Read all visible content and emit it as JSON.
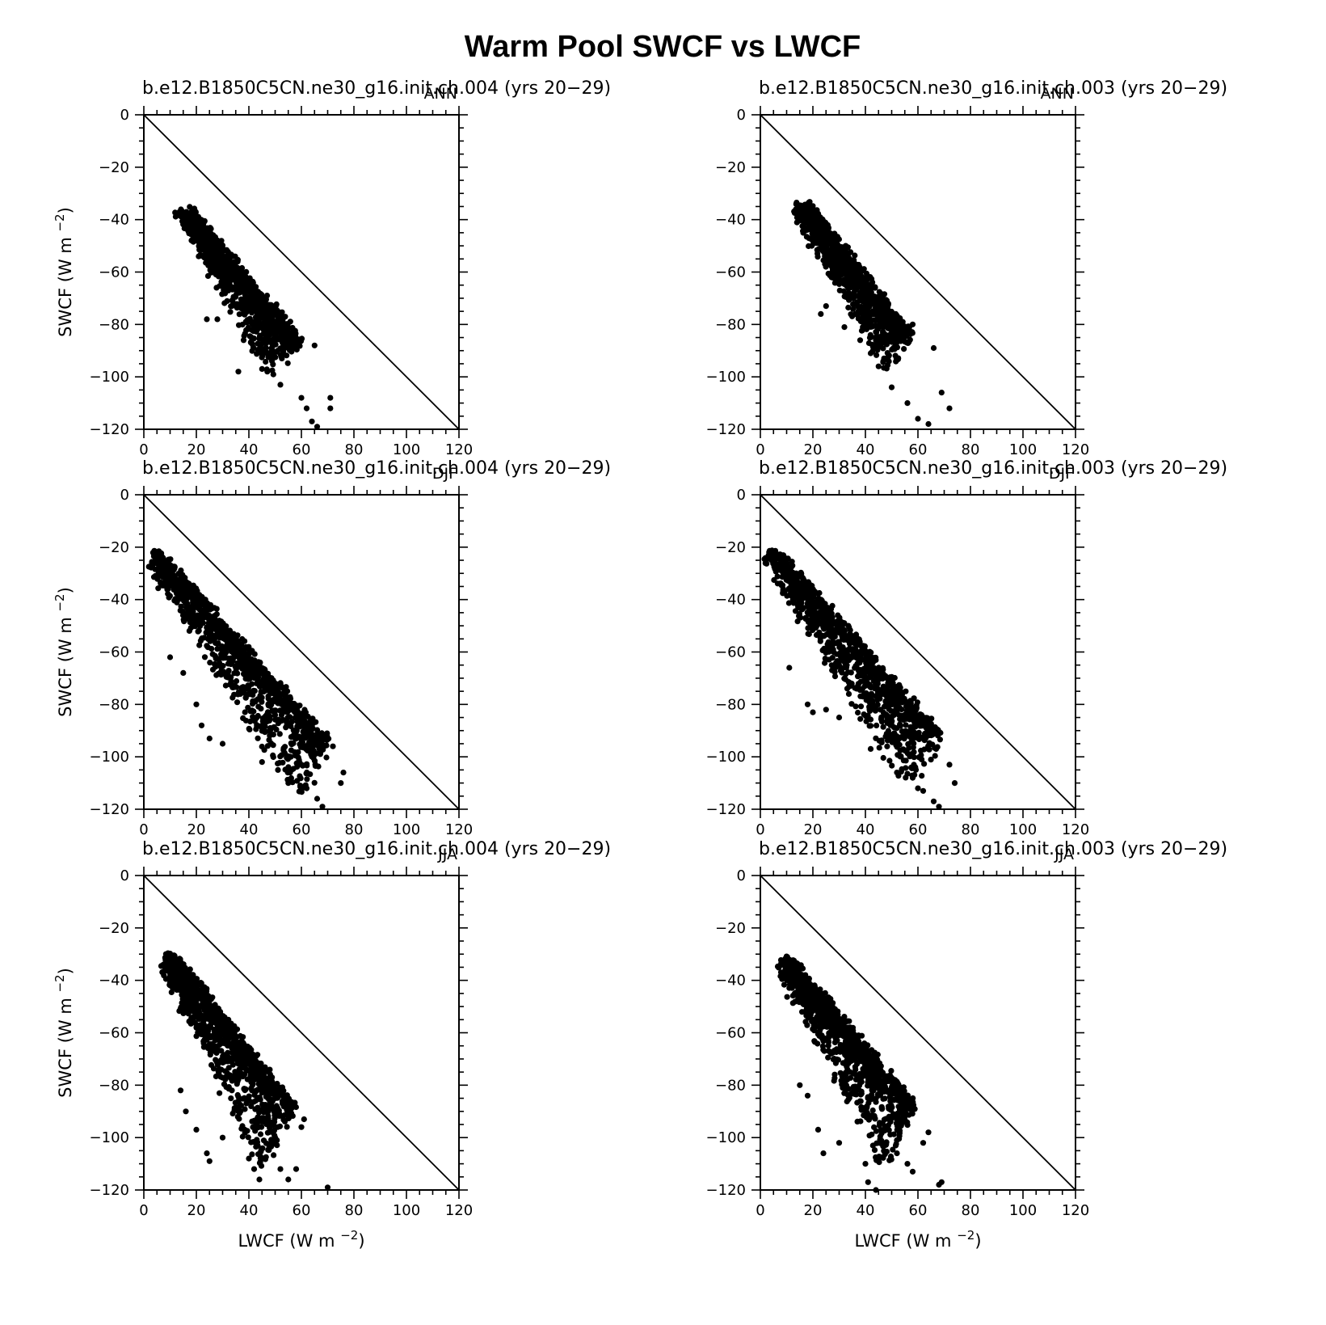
{
  "figure": {
    "title": "Warm Pool SWCF vs LWCF",
    "xlabel": "LWCF (W m",
    "ylabel": "SWCF (W m",
    "unit_exponent": "−2",
    "units_close": ")"
  },
  "chart_data": [
    {
      "type": "scatter",
      "title": "b.e12.B1850C5CN.ne30_g16.init.ch.004 (yrs 20−29)",
      "season": "ANN",
      "xlabel": "LWCF (W m−2)",
      "ylabel": "SWCF (W m−2)",
      "xlim": [
        0,
        120
      ],
      "ylim": [
        -120,
        0
      ],
      "xticks": [
        0,
        20,
        40,
        60,
        80,
        100,
        120
      ],
      "yticks": [
        0,
        -20,
        -40,
        -60,
        -80,
        -100,
        -120
      ],
      "reference_line": "y = -x",
      "series": [
        {
          "color": "#000000",
          "points": {
            "shape": "band",
            "x_start": 16,
            "y_start": -36,
            "x_end": 58,
            "y_end": -86,
            "width": 6,
            "scatter_x": 14,
            "scatter_y": -16,
            "outliers": [
              [
                24,
                -78
              ],
              [
                28,
                -78
              ],
              [
                38,
                -86
              ],
              [
                36,
                -98
              ],
              [
                45,
                -97
              ],
              [
                52,
                -103
              ],
              [
                60,
                -108
              ],
              [
                62,
                -112
              ],
              [
                64,
                -117
              ],
              [
                66,
                -119
              ],
              [
                71,
                -112
              ],
              [
                71,
                -108
              ],
              [
                65,
                -88
              ],
              [
                48,
                -86
              ]
            ]
          }
        }
      ]
    },
    {
      "type": "scatter",
      "title": "b.e12.B1850C5CN.ne30_g16.init.ch.003 (yrs 20−29)",
      "season": "ANN",
      "xlabel": "LWCF (W m−2)",
      "ylabel": "SWCF (W m−2)",
      "xlim": [
        0,
        120
      ],
      "ylim": [
        -120,
        0
      ],
      "xticks": [
        0,
        20,
        40,
        60,
        80,
        100,
        120
      ],
      "yticks": [
        0,
        -20,
        -40,
        -60,
        -80,
        -100,
        -120
      ],
      "reference_line": "y = -x",
      "series": [
        {
          "color": "#000000",
          "points": {
            "shape": "band",
            "x_start": 16,
            "y_start": -34,
            "x_end": 56,
            "y_end": -84,
            "width": 6,
            "scatter_x": 12,
            "scatter_y": -16,
            "outliers": [
              [
                23,
                -76
              ],
              [
                25,
                -73
              ],
              [
                32,
                -81
              ],
              [
                38,
                -86
              ],
              [
                42,
                -91
              ],
              [
                45,
                -96
              ],
              [
                50,
                -104
              ],
              [
                56,
                -110
              ],
              [
                60,
                -116
              ],
              [
                64,
                -118
              ],
              [
                72,
                -112
              ],
              [
                69,
                -106
              ],
              [
                66,
                -89
              ],
              [
                58,
                -80
              ]
            ]
          }
        }
      ]
    },
    {
      "type": "scatter",
      "title": "b.e12.B1850C5CN.ne30_g16.init.ch.004 (yrs 20−29)",
      "season": "DJF",
      "xlabel": "LWCF (W m−2)",
      "ylabel": "SWCF (W m−2)",
      "xlim": [
        0,
        120
      ],
      "ylim": [
        -120,
        0
      ],
      "xticks": [
        0,
        20,
        40,
        60,
        80,
        100,
        120
      ],
      "yticks": [
        0,
        -20,
        -40,
        -60,
        -80,
        -100,
        -120
      ],
      "reference_line": "y = -x",
      "series": [
        {
          "color": "#000000",
          "points": {
            "shape": "band",
            "x_start": 5,
            "y_start": -22,
            "x_end": 70,
            "y_end": -95,
            "width": 5,
            "scatter_x": 18,
            "scatter_y": -26,
            "outliers": [
              [
                10,
                -62
              ],
              [
                15,
                -68
              ],
              [
                20,
                -80
              ],
              [
                22,
                -88
              ],
              [
                25,
                -93
              ],
              [
                30,
                -95
              ],
              [
                45,
                -102
              ],
              [
                55,
                -110
              ],
              [
                62,
                -112
              ],
              [
                66,
                -116
              ],
              [
                68,
                -119
              ],
              [
                75,
                -110
              ],
              [
                76,
                -106
              ],
              [
                72,
                -96
              ]
            ]
          }
        }
      ]
    },
    {
      "type": "scatter",
      "title": "b.e12.B1850C5CN.ne30_g16.init.ch.003 (yrs 20−29)",
      "season": "DJF",
      "xlabel": "LWCF (W m−2)",
      "ylabel": "SWCF (W m−2)",
      "xlim": [
        0,
        120
      ],
      "ylim": [
        -120,
        0
      ],
      "xticks": [
        0,
        20,
        40,
        60,
        80,
        100,
        120
      ],
      "yticks": [
        0,
        -20,
        -40,
        -60,
        -80,
        -100,
        -120
      ],
      "reference_line": "y = -x",
      "series": [
        {
          "color": "#000000",
          "points": {
            "shape": "band",
            "x_start": 5,
            "y_start": -21,
            "x_end": 68,
            "y_end": -92,
            "width": 5,
            "scatter_x": 18,
            "scatter_y": -24,
            "outliers": [
              [
                11,
                -66
              ],
              [
                18,
                -80
              ],
              [
                20,
                -83
              ],
              [
                25,
                -82
              ],
              [
                30,
                -85
              ],
              [
                42,
                -97
              ],
              [
                52,
                -106
              ],
              [
                58,
                -108
              ],
              [
                60,
                -112
              ],
              [
                62,
                -113
              ],
              [
                66,
                -117
              ],
              [
                68,
                -119
              ],
              [
                74,
                -110
              ],
              [
                72,
                -103
              ]
            ]
          }
        }
      ]
    },
    {
      "type": "scatter",
      "title": "b.e12.B1850C5CN.ne30_g16.init.ch.004 (yrs 20−29)",
      "season": "JJA",
      "xlabel": "LWCF (W m−2)",
      "ylabel": "SWCF (W m−2)",
      "xlim": [
        0,
        120
      ],
      "ylim": [
        -120,
        0
      ],
      "xticks": [
        0,
        20,
        40,
        60,
        80,
        100,
        120
      ],
      "yticks": [
        0,
        -20,
        -40,
        -60,
        -80,
        -100,
        -120
      ],
      "reference_line": "y = -x",
      "series": [
        {
          "color": "#000000",
          "points": {
            "shape": "band",
            "x_start": 10,
            "y_start": -30,
            "x_end": 56,
            "y_end": -88,
            "width": 5,
            "scatter_x": 16,
            "scatter_y": -30,
            "outliers": [
              [
                14,
                -82
              ],
              [
                16,
                -90
              ],
              [
                20,
                -97
              ],
              [
                24,
                -106
              ],
              [
                25,
                -109
              ],
              [
                30,
                -100
              ],
              [
                40,
                -108
              ],
              [
                42,
                -112
              ],
              [
                44,
                -116
              ],
              [
                52,
                -112
              ],
              [
                55,
                -116
              ],
              [
                58,
                -112
              ],
              [
                60,
                -96
              ],
              [
                61,
                -93
              ],
              [
                70,
                -119
              ]
            ]
          }
        }
      ]
    },
    {
      "type": "scatter",
      "title": "b.e12.B1850C5CN.ne30_g16.init.ch.003 (yrs 20−29)",
      "season": "JJA",
      "xlabel": "LWCF (W m−2)",
      "ylabel": "SWCF (W m−2)",
      "xlim": [
        0,
        120
      ],
      "ylim": [
        -120,
        0
      ],
      "xticks": [
        0,
        20,
        40,
        60,
        80,
        100,
        120
      ],
      "yticks": [
        0,
        -20,
        -40,
        -60,
        -80,
        -100,
        -120
      ],
      "reference_line": "y = -x",
      "series": [
        {
          "color": "#000000",
          "points": {
            "shape": "band",
            "x_start": 10,
            "y_start": -31,
            "x_end": 58,
            "y_end": -88,
            "width": 5,
            "scatter_x": 16,
            "scatter_y": -28,
            "outliers": [
              [
                15,
                -80
              ],
              [
                18,
                -84
              ],
              [
                22,
                -97
              ],
              [
                24,
                -106
              ],
              [
                30,
                -102
              ],
              [
                40,
                -110
              ],
              [
                41,
                -117
              ],
              [
                44,
                -120
              ],
              [
                52,
                -106
              ],
              [
                56,
                -110
              ],
              [
                58,
                -113
              ],
              [
                62,
                -102
              ],
              [
                64,
                -98
              ],
              [
                68,
                -118
              ],
              [
                69,
                -117
              ]
            ]
          }
        }
      ]
    }
  ]
}
